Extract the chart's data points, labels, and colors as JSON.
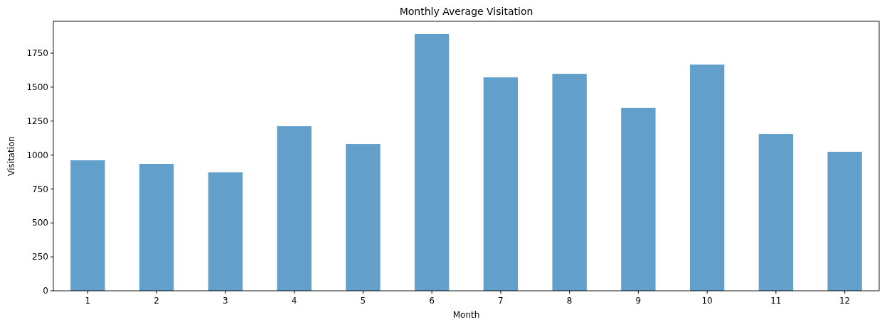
{
  "chart_data": {
    "type": "bar",
    "title": "Monthly Average Visitation",
    "xlabel": "Month",
    "ylabel": "Visitation",
    "categories": [
      "1",
      "2",
      "3",
      "4",
      "5",
      "6",
      "7",
      "8",
      "9",
      "10",
      "11",
      "12"
    ],
    "values": [
      961,
      935,
      872,
      1212,
      1081,
      1891,
      1572,
      1598,
      1348,
      1666,
      1154,
      1024
    ],
    "color": "#629fca",
    "ylim": [
      0,
      1985
    ],
    "yticks": [
      0,
      250,
      500,
      750,
      1000,
      1250,
      1500,
      1750
    ],
    "grid": false
  }
}
